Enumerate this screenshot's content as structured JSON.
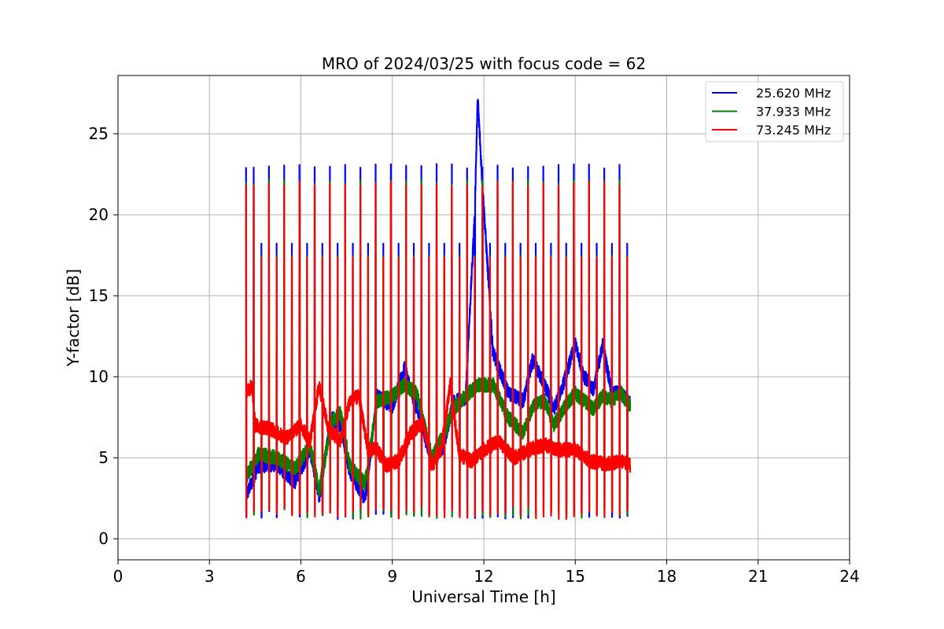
{
  "chart_data": {
    "type": "line",
    "title": "MRO of 2024/03/25 with focus code = 62",
    "xlabel": "Universal Time [h]",
    "ylabel": "Y-factor [dB]",
    "xlim": [
      0,
      24
    ],
    "ylim": [
      -1.3,
      28.6
    ],
    "xticks": [
      0,
      3,
      6,
      9,
      12,
      15,
      18,
      21,
      24
    ],
    "yticks": [
      0,
      5,
      10,
      15,
      20,
      25
    ],
    "grid": true,
    "legend_position": "top-right",
    "time_range": [
      4.2,
      16.8
    ],
    "pulse_period_h": 0.25,
    "series": [
      {
        "name": "25.620 MHz",
        "color": "#0000ff",
        "pulse_peak": 23.0,
        "baseline": [
          [
            4.2,
            2.6
          ],
          [
            4.6,
            4.5
          ],
          [
            5.2,
            4.6
          ],
          [
            5.8,
            3.5
          ],
          [
            6.3,
            5.5
          ],
          [
            6.6,
            2.5
          ],
          [
            7.0,
            7.5
          ],
          [
            7.3,
            7.0
          ],
          [
            7.6,
            4.2
          ],
          [
            8.1,
            2.4
          ],
          [
            8.5,
            8.8
          ],
          [
            9.0,
            8.2
          ],
          [
            9.4,
            10.5
          ],
          [
            9.8,
            8.0
          ],
          [
            10.3,
            4.8
          ],
          [
            10.7,
            5.8
          ],
          [
            11.0,
            8.5
          ],
          [
            11.4,
            8.6
          ],
          [
            11.7,
            20.0
          ],
          [
            11.8,
            27.2
          ],
          [
            11.95,
            22.0
          ],
          [
            12.3,
            11.5
          ],
          [
            12.8,
            9.0
          ],
          [
            13.3,
            8.5
          ],
          [
            13.6,
            11.0
          ],
          [
            14.0,
            9.5
          ],
          [
            14.3,
            8.0
          ],
          [
            14.6,
            9.5
          ],
          [
            15.0,
            12.0
          ],
          [
            15.3,
            10.0
          ],
          [
            15.6,
            9.2
          ],
          [
            15.9,
            12.0
          ],
          [
            16.2,
            9.0
          ],
          [
            16.5,
            9.0
          ],
          [
            16.8,
            8.3
          ]
        ]
      },
      {
        "name": "37.933 MHz",
        "color": "#008000",
        "pulse_peak": 22.0,
        "baseline": [
          [
            4.2,
            3.8
          ],
          [
            4.6,
            5.2
          ],
          [
            5.2,
            5.0
          ],
          [
            5.8,
            4.3
          ],
          [
            6.3,
            5.8
          ],
          [
            6.6,
            3.0
          ],
          [
            7.0,
            7.2
          ],
          [
            7.3,
            7.8
          ],
          [
            7.6,
            4.5
          ],
          [
            8.1,
            3.4
          ],
          [
            8.5,
            8.5
          ],
          [
            9.0,
            8.8
          ],
          [
            9.4,
            9.5
          ],
          [
            9.8,
            9.0
          ],
          [
            10.3,
            5.0
          ],
          [
            10.7,
            6.5
          ],
          [
            11.0,
            8.0
          ],
          [
            11.4,
            8.8
          ],
          [
            11.8,
            9.5
          ],
          [
            12.3,
            9.5
          ],
          [
            12.8,
            7.5
          ],
          [
            13.3,
            6.5
          ],
          [
            13.6,
            8.2
          ],
          [
            14.0,
            8.5
          ],
          [
            14.3,
            7.0
          ],
          [
            14.6,
            8.0
          ],
          [
            15.0,
            9.0
          ],
          [
            15.3,
            8.5
          ],
          [
            15.6,
            8.0
          ],
          [
            15.9,
            8.8
          ],
          [
            16.2,
            8.5
          ],
          [
            16.5,
            9.0
          ],
          [
            16.8,
            8.2
          ]
        ]
      },
      {
        "name": "73.245 MHz",
        "color": "#ff0000",
        "pulse_peak": 21.9,
        "baseline": [
          [
            4.2,
            9.0
          ],
          [
            4.4,
            9.5
          ],
          [
            4.5,
            7.0
          ],
          [
            5.0,
            6.8
          ],
          [
            5.5,
            6.2
          ],
          [
            6.0,
            7.0
          ],
          [
            6.3,
            6.0
          ],
          [
            6.6,
            9.5
          ],
          [
            6.9,
            6.8
          ],
          [
            7.3,
            6.0
          ],
          [
            7.6,
            8.5
          ],
          [
            7.9,
            8.8
          ],
          [
            8.2,
            5.5
          ],
          [
            8.5,
            5.5
          ],
          [
            8.8,
            4.5
          ],
          [
            9.2,
            4.8
          ],
          [
            9.6,
            6.5
          ],
          [
            10.0,
            7.2
          ],
          [
            10.3,
            4.5
          ],
          [
            10.6,
            5.5
          ],
          [
            10.9,
            9.5
          ],
          [
            11.2,
            5.2
          ],
          [
            11.6,
            4.8
          ],
          [
            12.0,
            5.5
          ],
          [
            12.5,
            6.0
          ],
          [
            13.0,
            5.0
          ],
          [
            13.5,
            5.5
          ],
          [
            14.0,
            5.8
          ],
          [
            14.5,
            5.5
          ],
          [
            15.0,
            5.5
          ],
          [
            15.5,
            4.8
          ],
          [
            16.0,
            4.6
          ],
          [
            16.5,
            4.8
          ],
          [
            16.8,
            4.5
          ]
        ]
      }
    ]
  }
}
